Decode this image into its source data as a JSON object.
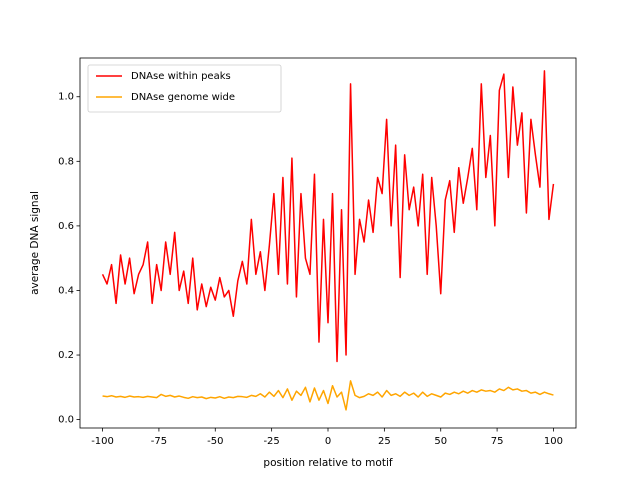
{
  "chart_data": {
    "type": "line",
    "xlabel": "position relative to motif",
    "ylabel": "average DNA signal",
    "x": [
      -100,
      -98,
      -96,
      -94,
      -92,
      -90,
      -88,
      -86,
      -84,
      -82,
      -80,
      -78,
      -76,
      -74,
      -72,
      -70,
      -68,
      -66,
      -64,
      -62,
      -60,
      -58,
      -56,
      -54,
      -52,
      -50,
      -48,
      -46,
      -44,
      -42,
      -40,
      -38,
      -36,
      -34,
      -32,
      -30,
      -28,
      -26,
      -24,
      -22,
      -20,
      -18,
      -16,
      -14,
      -12,
      -10,
      -8,
      -6,
      -4,
      -2,
      0,
      2,
      4,
      6,
      8,
      10,
      12,
      14,
      16,
      18,
      20,
      22,
      24,
      26,
      28,
      30,
      32,
      34,
      36,
      38,
      40,
      42,
      44,
      46,
      48,
      50,
      52,
      54,
      56,
      58,
      60,
      62,
      64,
      66,
      68,
      70,
      72,
      74,
      76,
      78,
      80,
      82,
      84,
      86,
      88,
      90,
      92,
      94,
      96,
      98,
      100
    ],
    "series": [
      {
        "name": "DNAse within peaks",
        "color": "#ff0000",
        "values": [
          0.45,
          0.42,
          0.48,
          0.36,
          0.51,
          0.42,
          0.5,
          0.39,
          0.45,
          0.48,
          0.55,
          0.36,
          0.48,
          0.4,
          0.55,
          0.45,
          0.58,
          0.4,
          0.46,
          0.36,
          0.5,
          0.34,
          0.42,
          0.35,
          0.41,
          0.37,
          0.44,
          0.38,
          0.4,
          0.32,
          0.43,
          0.49,
          0.42,
          0.62,
          0.45,
          0.52,
          0.4,
          0.54,
          0.7,
          0.45,
          0.75,
          0.42,
          0.81,
          0.38,
          0.7,
          0.5,
          0.45,
          0.76,
          0.24,
          0.62,
          0.3,
          0.7,
          0.18,
          0.65,
          0.2,
          1.04,
          0.45,
          0.62,
          0.55,
          0.68,
          0.58,
          0.75,
          0.7,
          0.93,
          0.6,
          0.85,
          0.44,
          0.82,
          0.65,
          0.72,
          0.6,
          0.76,
          0.45,
          0.75,
          0.6,
          0.39,
          0.68,
          0.74,
          0.58,
          0.78,
          0.67,
          0.75,
          0.84,
          0.65,
          1.04,
          0.75,
          0.88,
          0.6,
          1.02,
          1.07,
          0.75,
          1.03,
          0.85,
          0.95,
          0.64,
          0.93,
          0.82,
          0.72,
          1.08,
          0.62,
          0.73
        ]
      },
      {
        "name": "DNAse genome wide",
        "color": "#ffa500",
        "values": [
          0.073,
          0.071,
          0.074,
          0.07,
          0.072,
          0.069,
          0.073,
          0.07,
          0.071,
          0.069,
          0.072,
          0.07,
          0.068,
          0.078,
          0.072,
          0.075,
          0.07,
          0.073,
          0.069,
          0.066,
          0.071,
          0.068,
          0.07,
          0.065,
          0.069,
          0.067,
          0.071,
          0.066,
          0.07,
          0.068,
          0.072,
          0.071,
          0.069,
          0.075,
          0.072,
          0.08,
          0.07,
          0.085,
          0.072,
          0.09,
          0.068,
          0.095,
          0.06,
          0.088,
          0.075,
          0.1,
          0.055,
          0.098,
          0.06,
          0.09,
          0.05,
          0.105,
          0.07,
          0.085,
          0.03,
          0.12,
          0.075,
          0.068,
          0.072,
          0.08,
          0.075,
          0.085,
          0.07,
          0.09,
          0.075,
          0.08,
          0.072,
          0.085,
          0.075,
          0.082,
          0.07,
          0.085,
          0.072,
          0.08,
          0.075,
          0.07,
          0.082,
          0.078,
          0.085,
          0.08,
          0.088,
          0.082,
          0.09,
          0.085,
          0.092,
          0.088,
          0.09,
          0.085,
          0.095,
          0.09,
          0.1,
          0.092,
          0.095,
          0.088,
          0.09,
          0.082,
          0.085,
          0.078,
          0.085,
          0.08,
          0.076
        ]
      }
    ],
    "xlim": [
      -110,
      110
    ],
    "ylim": [
      -0.026,
      1.12
    ],
    "xticks": [
      -100,
      -75,
      -50,
      -25,
      0,
      25,
      50,
      75,
      100
    ],
    "yticks": [
      {
        "value": 0.0,
        "label": "0.0"
      },
      0.2,
      0.4,
      0.6,
      0.8,
      {
        "value": 1.0,
        "label": "1.0"
      }
    ],
    "legend": "upper left"
  }
}
